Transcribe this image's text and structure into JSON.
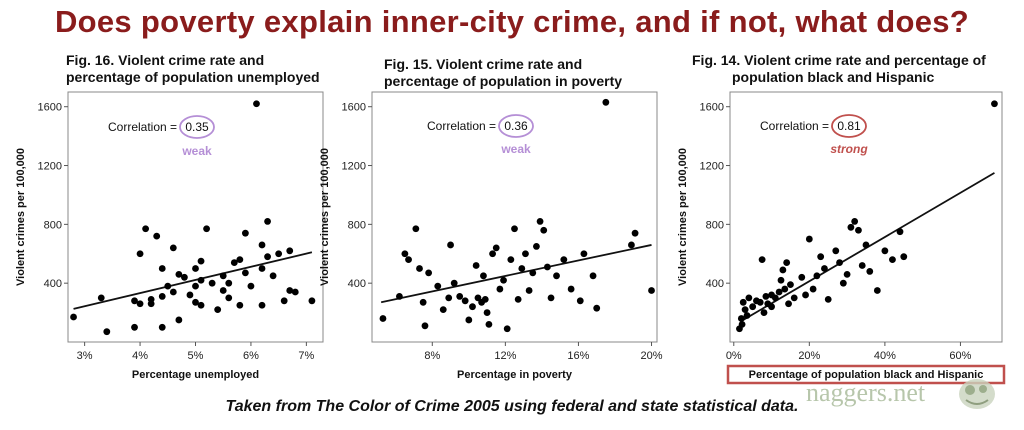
{
  "page": {
    "title": "Does poverty explain inner-city crime, and if not, what does?",
    "footer": "Taken from The Color of Crime 2005 using federal and state statistical data.",
    "watermark": "naggers.net",
    "title_color": "#8a1c1c"
  },
  "colors": {
    "weak": "#b58fd6",
    "strong": "#c0504d",
    "points": "#000000",
    "frame": "#888888"
  },
  "chart_data": [
    {
      "type": "scatter",
      "title": "Fig. 16. Violent crime rate and percentage of population unemployed",
      "title_lines": [
        "Fig. 16. Violent crime rate and",
        "percentage of population unemployed"
      ],
      "xlabel": "Percentage unemployed",
      "ylabel": "Violent crimes per 100,000",
      "xlim": [
        2.7,
        7.3
      ],
      "ylim": [
        0,
        1700
      ],
      "xticks": [
        3,
        4,
        5,
        6,
        7
      ],
      "xtick_labels": [
        "3%",
        "4%",
        "5%",
        "6%",
        "7%"
      ],
      "yticks": [
        400,
        800,
        1200,
        1600
      ],
      "ytick_labels": [
        "400",
        "800",
        "1200",
        "1600"
      ],
      "correlation_label": "Correlation =",
      "correlation": "0.35",
      "strength": "weak",
      "strength_color": "#b58fd6",
      "trendline": [
        [
          2.8,
          225
        ],
        [
          7.1,
          610
        ]
      ],
      "points": [
        [
          2.8,
          170
        ],
        [
          3.3,
          300
        ],
        [
          3.4,
          70
        ],
        [
          3.9,
          100
        ],
        [
          3.9,
          280
        ],
        [
          4.0,
          260
        ],
        [
          4.0,
          600
        ],
        [
          4.1,
          770
        ],
        [
          4.2,
          290
        ],
        [
          4.2,
          260
        ],
        [
          4.3,
          720
        ],
        [
          4.4,
          500
        ],
        [
          4.4,
          310
        ],
        [
          4.4,
          100
        ],
        [
          4.5,
          380
        ],
        [
          4.6,
          640
        ],
        [
          4.6,
          340
        ],
        [
          4.7,
          460
        ],
        [
          4.7,
          150
        ],
        [
          4.8,
          440
        ],
        [
          4.9,
          320
        ],
        [
          5.0,
          500
        ],
        [
          5.0,
          380
        ],
        [
          5.0,
          270
        ],
        [
          5.1,
          550
        ],
        [
          5.1,
          420
        ],
        [
          5.1,
          250
        ],
        [
          5.2,
          770
        ],
        [
          5.3,
          400
        ],
        [
          5.4,
          220
        ],
        [
          5.5,
          350
        ],
        [
          5.5,
          450
        ],
        [
          5.6,
          300
        ],
        [
          5.6,
          400
        ],
        [
          5.7,
          540
        ],
        [
          5.8,
          250
        ],
        [
          5.8,
          560
        ],
        [
          5.9,
          740
        ],
        [
          5.9,
          470
        ],
        [
          6.0,
          380
        ],
        [
          6.1,
          1620
        ],
        [
          6.2,
          500
        ],
        [
          6.2,
          660
        ],
        [
          6.2,
          250
        ],
        [
          6.3,
          820
        ],
        [
          6.3,
          580
        ],
        [
          6.4,
          450
        ],
        [
          6.5,
          600
        ],
        [
          6.6,
          280
        ],
        [
          6.7,
          620
        ],
        [
          6.7,
          350
        ],
        [
          6.8,
          340
        ],
        [
          7.1,
          280
        ]
      ]
    },
    {
      "type": "scatter",
      "title": "Fig. 15. Violent crime rate and percentage of population in poverty",
      "title_lines": [
        "Fig. 15. Violent crime rate and",
        "percentage of population in poverty"
      ],
      "xlabel": "Percentage in poverty",
      "ylabel": "Violent crimes per 100,000",
      "xlim": [
        4.7,
        20.3
      ],
      "ylim": [
        0,
        1700
      ],
      "xticks": [
        8,
        12,
        16,
        20
      ],
      "xtick_labels": [
        "8%",
        "12%",
        "16%",
        "20%"
      ],
      "yticks": [
        400,
        800,
        1200,
        1600
      ],
      "ytick_labels": [
        "400",
        "800",
        "1200",
        "1600"
      ],
      "correlation_label": "Correlation =",
      "correlation": "0.36",
      "strength": "weak",
      "strength_color": "#b58fd6",
      "trendline": [
        [
          5.2,
          270
        ],
        [
          20.0,
          660
        ]
      ],
      "points": [
        [
          5.3,
          160
        ],
        [
          6.2,
          310
        ],
        [
          6.5,
          600
        ],
        [
          6.7,
          560
        ],
        [
          7.1,
          770
        ],
        [
          7.3,
          500
        ],
        [
          7.5,
          270
        ],
        [
          7.6,
          110
        ],
        [
          7.8,
          470
        ],
        [
          8.3,
          380
        ],
        [
          8.6,
          220
        ],
        [
          8.9,
          300
        ],
        [
          9.0,
          660
        ],
        [
          9.2,
          400
        ],
        [
          9.5,
          310
        ],
        [
          9.8,
          280
        ],
        [
          10.0,
          150
        ],
        [
          10.2,
          240
        ],
        [
          10.4,
          520
        ],
        [
          10.5,
          300
        ],
        [
          10.7,
          270
        ],
        [
          10.8,
          450
        ],
        [
          10.9,
          290
        ],
        [
          11.0,
          200
        ],
        [
          11.1,
          120
        ],
        [
          11.3,
          600
        ],
        [
          11.5,
          640
        ],
        [
          11.7,
          360
        ],
        [
          11.9,
          420
        ],
        [
          12.1,
          90
        ],
        [
          12.3,
          560
        ],
        [
          12.5,
          770
        ],
        [
          12.7,
          290
        ],
        [
          12.9,
          500
        ],
        [
          13.1,
          600
        ],
        [
          13.3,
          350
        ],
        [
          13.5,
          470
        ],
        [
          13.7,
          650
        ],
        [
          13.9,
          820
        ],
        [
          14.1,
          760
        ],
        [
          14.3,
          510
        ],
        [
          14.5,
          300
        ],
        [
          14.8,
          450
        ],
        [
          15.2,
          560
        ],
        [
          15.6,
          360
        ],
        [
          16.1,
          280
        ],
        [
          16.3,
          600
        ],
        [
          16.8,
          450
        ],
        [
          17.0,
          230
        ],
        [
          17.5,
          1630
        ],
        [
          18.9,
          660
        ],
        [
          19.1,
          740
        ],
        [
          20.0,
          350
        ]
      ]
    },
    {
      "type": "scatter",
      "title": "Fig. 14. Violent crime rate and percentage of population black and Hispanic",
      "title_lines": [
        "Fig. 14. Violent crime rate and percentage of",
        "population black and Hispanic"
      ],
      "xlabel": "Percentage of population black and Hispanic",
      "ylabel": "Violent crimes per 100,000",
      "xlim": [
        -1,
        71
      ],
      "ylim": [
        0,
        1700
      ],
      "xticks": [
        0,
        20,
        40,
        60
      ],
      "xtick_labels": [
        "0%",
        "20%",
        "40%",
        "60%"
      ],
      "yticks": [
        400,
        800,
        1200,
        1600
      ],
      "ytick_labels": [
        "400",
        "800",
        "1200",
        "1600"
      ],
      "correlation_label": "Correlation =",
      "correlation": "0.81",
      "strength": "strong",
      "strength_color": "#c0504d",
      "xlabel_boxed": true,
      "trendline": [
        [
          2.5,
          150
        ],
        [
          69,
          1150
        ]
      ],
      "points": [
        [
          1.5,
          90
        ],
        [
          2.0,
          160
        ],
        [
          2.2,
          120
        ],
        [
          2.5,
          270
        ],
        [
          3.0,
          220
        ],
        [
          3.5,
          180
        ],
        [
          4.0,
          300
        ],
        [
          5,
          240
        ],
        [
          6,
          280
        ],
        [
          7,
          270
        ],
        [
          7.5,
          560
        ],
        [
          8,
          200
        ],
        [
          8.5,
          310
        ],
        [
          9,
          260
        ],
        [
          10,
          240
        ],
        [
          10,
          320
        ],
        [
          11,
          300
        ],
        [
          12,
          340
        ],
        [
          12.5,
          420
        ],
        [
          13,
          490
        ],
        [
          13.5,
          360
        ],
        [
          14,
          540
        ],
        [
          14.5,
          260
        ],
        [
          15,
          390
        ],
        [
          16,
          300
        ],
        [
          18,
          440
        ],
        [
          19,
          320
        ],
        [
          20,
          700
        ],
        [
          21,
          360
        ],
        [
          22,
          450
        ],
        [
          23,
          580
        ],
        [
          24,
          500
        ],
        [
          25,
          290
        ],
        [
          27,
          620
        ],
        [
          28,
          540
        ],
        [
          29,
          400
        ],
        [
          30,
          460
        ],
        [
          31,
          780
        ],
        [
          32,
          820
        ],
        [
          33,
          760
        ],
        [
          34,
          520
        ],
        [
          35,
          660
        ],
        [
          36,
          480
        ],
        [
          38,
          350
        ],
        [
          40,
          620
        ],
        [
          42,
          560
        ],
        [
          44,
          750
        ],
        [
          45,
          580
        ],
        [
          69,
          1620
        ]
      ]
    }
  ]
}
